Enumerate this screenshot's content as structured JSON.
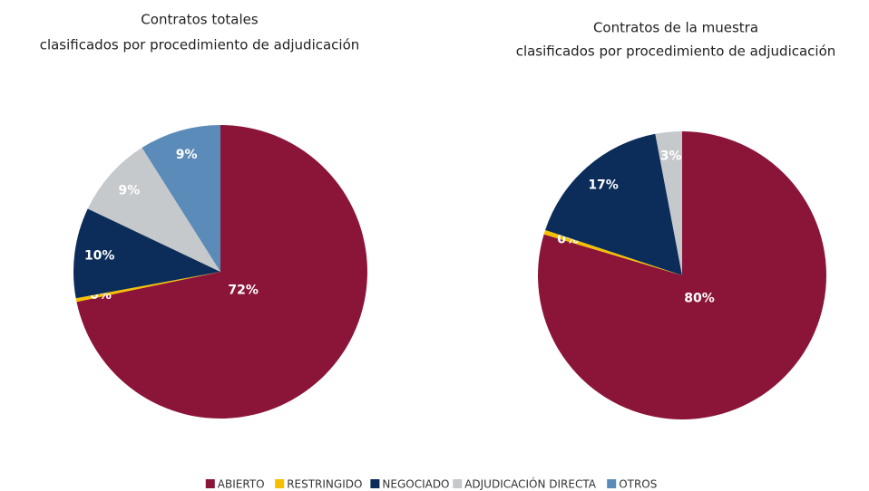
{
  "chart_data": [
    {
      "type": "pie",
      "title": "Contratos totales",
      "subtitle": "clasificados por procedimiento de adjudicación",
      "categories": [
        "ABIERTO",
        "RESTRINGIDO",
        "NEGOCIADO",
        "ADJUDICACIÓN DIRECTA",
        "OTROS"
      ],
      "values": [
        72,
        0.4,
        10,
        9,
        9
      ],
      "value_labels": [
        "72%",
        "0%",
        "10%",
        "9%",
        "9%"
      ],
      "colors": [
        "#8b1538",
        "#f5c000",
        "#0c2d5a",
        "#c6c9cc",
        "#5b8bb8"
      ]
    },
    {
      "type": "pie",
      "title": "Contratos de la muestra",
      "subtitle": "clasificados por procedimiento de adjudicación",
      "categories": [
        "ABIERTO",
        "RESTRINGIDO",
        "NEGOCIADO",
        "ADJUDICACIÓN DIRECTA"
      ],
      "values": [
        80,
        0.5,
        17,
        3
      ],
      "value_labels": [
        "80%",
        "0%",
        "17%",
        "3%"
      ],
      "colors": [
        "#8b1538",
        "#f5c000",
        "#0c2d5a",
        "#c6c9cc"
      ]
    }
  ],
  "legend": {
    "items": [
      {
        "name": "ABIERTO",
        "color": "#8b1538"
      },
      {
        "name": "RESTRINGIDO",
        "color": "#f5c000"
      },
      {
        "name": "NEGOCIADO",
        "color": "#0c2d5a"
      },
      {
        "name": "ADJUDICACIÓN DIRECTA",
        "color": "#c6c9cc"
      },
      {
        "name": "OTROS",
        "color": "#5b8bb8"
      }
    ]
  }
}
